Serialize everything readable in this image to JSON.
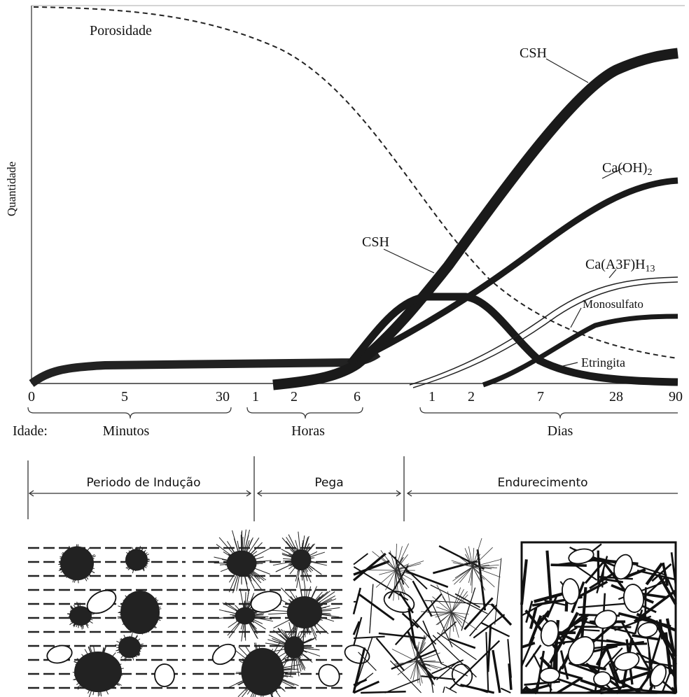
{
  "y_axis_label": "Quantidade",
  "curve_labels": {
    "porosidade": "Porosidade",
    "csh_late": "CSH",
    "ca_oh2": {
      "text": "Ca(OH)",
      "sub": "2"
    },
    "csh_early": "CSH",
    "ca_a3f_h13": {
      "text": "Ca(A3F)H",
      "sub": "13"
    },
    "monosulfato": "Monosulfato",
    "etringita": "Etringita"
  },
  "age_ticks": [
    "0",
    "5",
    "30",
    "1",
    "2",
    "6",
    "1",
    "2",
    "7",
    "28",
    "90"
  ],
  "age_label": "Idade:",
  "age_units": [
    "Minutos",
    "Horas",
    "Dias"
  ],
  "stages": [
    "Periodo de Indução",
    "Pega",
    "Endurecimento"
  ]
}
